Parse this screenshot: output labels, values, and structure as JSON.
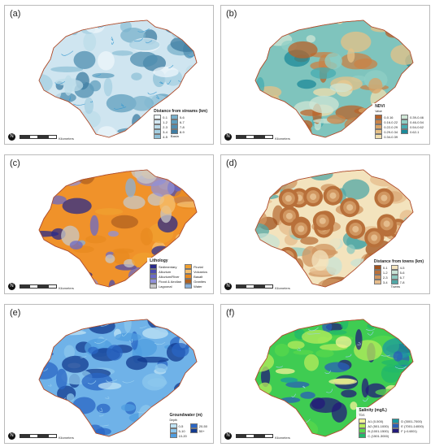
{
  "panels": [
    {
      "label": "(a)",
      "legend_title": "Distance from streams (km)",
      "sub": "",
      "items": [
        "0-1",
        "1-2",
        "2-3",
        "3-4",
        "4-5",
        "5-6",
        "6-7",
        "7-8",
        "8-9"
      ],
      "colors": [
        "#eef6fb",
        "#d4e8f2",
        "#bcdcea",
        "#a6cfe1",
        "#8fc0d7",
        "#78b0cb",
        "#5f9ebe",
        "#4f8db0",
        "#3e7ca2"
      ],
      "extra": "Basin",
      "fill": "#cfe5f0"
    },
    {
      "label": "(b)",
      "legend_title": "NDVI",
      "sub": "Value",
      "items": [
        "0-0.16",
        "0.16-0.22",
        "0.22-0.29",
        "0.29-0.34",
        "0.34-0.39",
        "0.39-0.46",
        "0.46-0.54",
        "0.54-0.62",
        "0.62-1"
      ],
      "colors": [
        "#b8632a",
        "#c98246",
        "#d9a365",
        "#e6c187",
        "#f1dfae",
        "#cfe6d6",
        "#8fcfc5",
        "#45acb1",
        "#1c8a9a"
      ],
      "extra": "",
      "fill": "#7fc4bd"
    },
    {
      "label": "(c)",
      "legend_title": "Lithology",
      "sub": "",
      "items": [
        "Sedimentary",
        "Alluvium",
        "Alluvium/River",
        "Flood & Aeolian",
        "Lagoonal",
        "Fluvial",
        "Volcanics",
        "Basalt",
        "Granites",
        "Water"
      ],
      "colors": [
        "#2a2a8a",
        "#4b4bb0",
        "#6a6ac8",
        "#9090d8",
        "#c8c8c8",
        "#f0a030",
        "#f5c070",
        "#e88a20",
        "#b06020",
        "#8ab0d8"
      ],
      "extra": "",
      "fill": "#f0922a"
    },
    {
      "label": "(d)",
      "legend_title": "Distance from towns (km)",
      "sub": "",
      "items": [
        "0-1",
        "1-2",
        "2-3",
        "3-4",
        "4-5",
        "5-6",
        "6-7",
        "7-8"
      ],
      "colors": [
        "#a0521d",
        "#b8703a",
        "#d09660",
        "#e5bc8c",
        "#f3e3bd",
        "#c8e3d6",
        "#8ec9bf",
        "#50a7a6"
      ],
      "extra": "Towns",
      "fill": "#f3e3bd"
    },
    {
      "label": "(e)",
      "legend_title": "Groundwater (m)",
      "sub": "Depth",
      "items": [
        "0-5",
        "5-10",
        "10-20",
        "20-50",
        "50+"
      ],
      "colors": [
        "#bfe3f5",
        "#8cc7ee",
        "#4f9de0",
        "#2a66c4",
        "#123a8f"
      ],
      "extra": "",
      "fill": "#6fb2e8"
    },
    {
      "label": "(f)",
      "legend_title": "Salinity (mg/L)",
      "sub": "TDS",
      "items": [
        "A1 (0-500)",
        "A2 (501-1000)",
        "B (1001-1500)",
        "C (1501-3000)",
        "D (3001-7000)",
        "E (7001-14000)",
        "F (>14001)"
      ],
      "colors": [
        "#f6f39a",
        "#b8ec5c",
        "#58d84c",
        "#22b86a",
        "#1a9aa0",
        "#2a5fb8",
        "#231a7a"
      ],
      "extra": "",
      "fill": "#3fcc52"
    }
  ],
  "scale_label": "Kilometers",
  "north_label": "N"
}
